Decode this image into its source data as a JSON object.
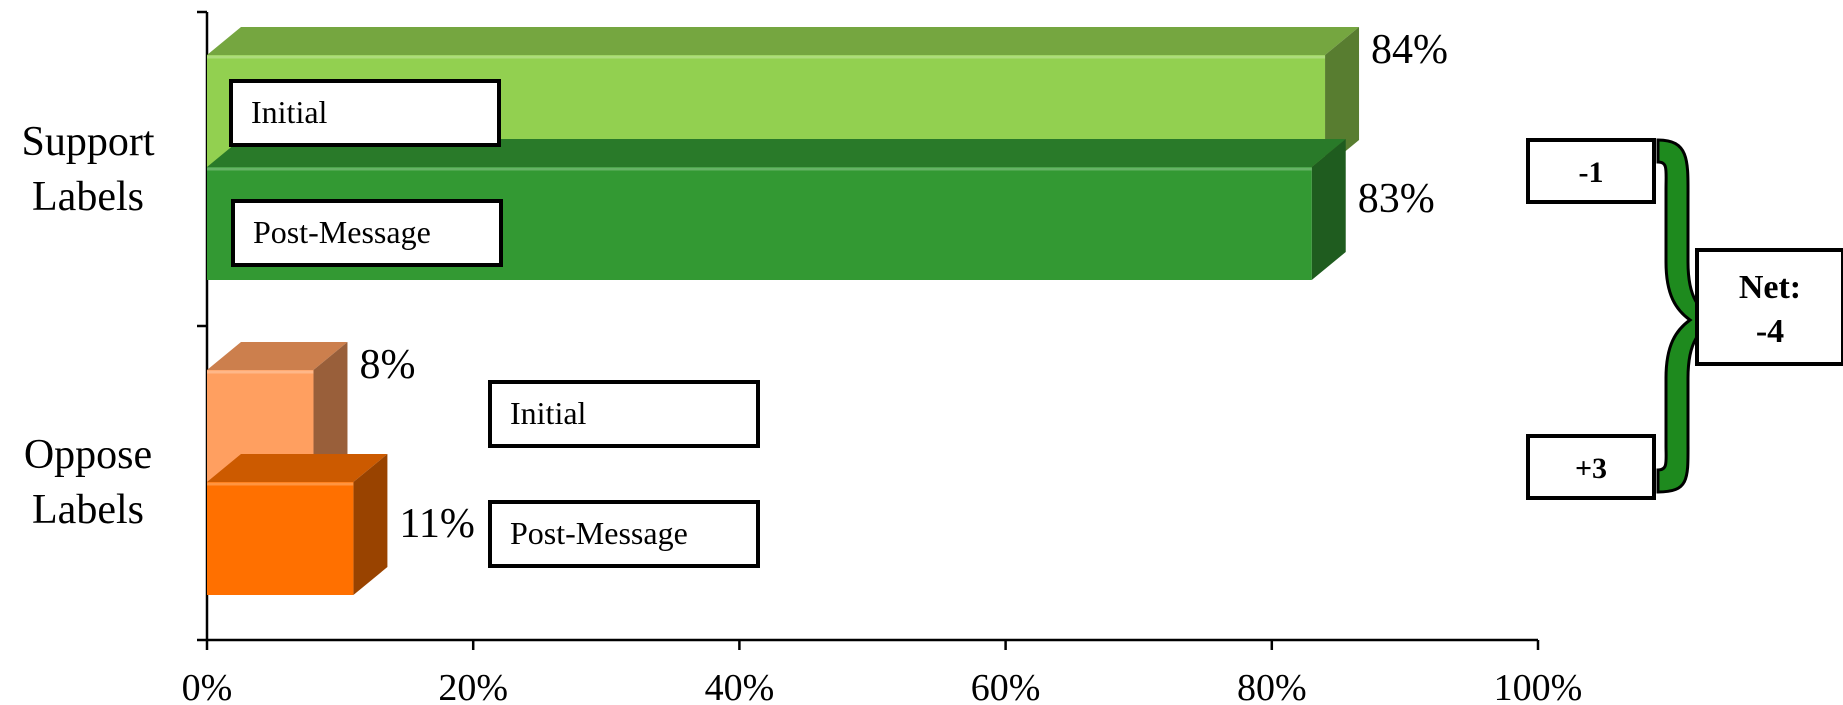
{
  "chart_data": {
    "type": "bar",
    "orientation": "horizontal",
    "categories": [
      "Support Labels",
      "Oppose Labels"
    ],
    "category_lines": [
      [
        "Support",
        "Labels"
      ],
      [
        "Oppose",
        "Labels"
      ]
    ],
    "series": [
      {
        "name": "Initial",
        "values": [
          84,
          8
        ],
        "value_labels": [
          "84%",
          "8%"
        ]
      },
      {
        "name": "Post-Message",
        "values": [
          83,
          11
        ],
        "value_labels": [
          "83%",
          "11%"
        ]
      }
    ],
    "colors": {
      "Support Labels": {
        "Initial": "#92d050",
        "Post-Message": "#339933"
      },
      "Oppose Labels": {
        "Initial": "#ff9f60",
        "Post-Message": "#ff7000"
      },
      "brace": "#1e8a1e"
    },
    "xlim": [
      0,
      100
    ],
    "x_ticks": [
      0,
      20,
      40,
      60,
      80,
      100
    ],
    "x_tick_labels": [
      "0%",
      "20%",
      "40%",
      "60%",
      "80%",
      "100%"
    ],
    "grid": false,
    "legend": "inline boxes",
    "changes": [
      {
        "category": "Support Labels",
        "label": "-1"
      },
      {
        "category": "Oppose Labels",
        "label": "+3"
      }
    ],
    "net": {
      "label": "Net:",
      "value": "-4"
    }
  }
}
